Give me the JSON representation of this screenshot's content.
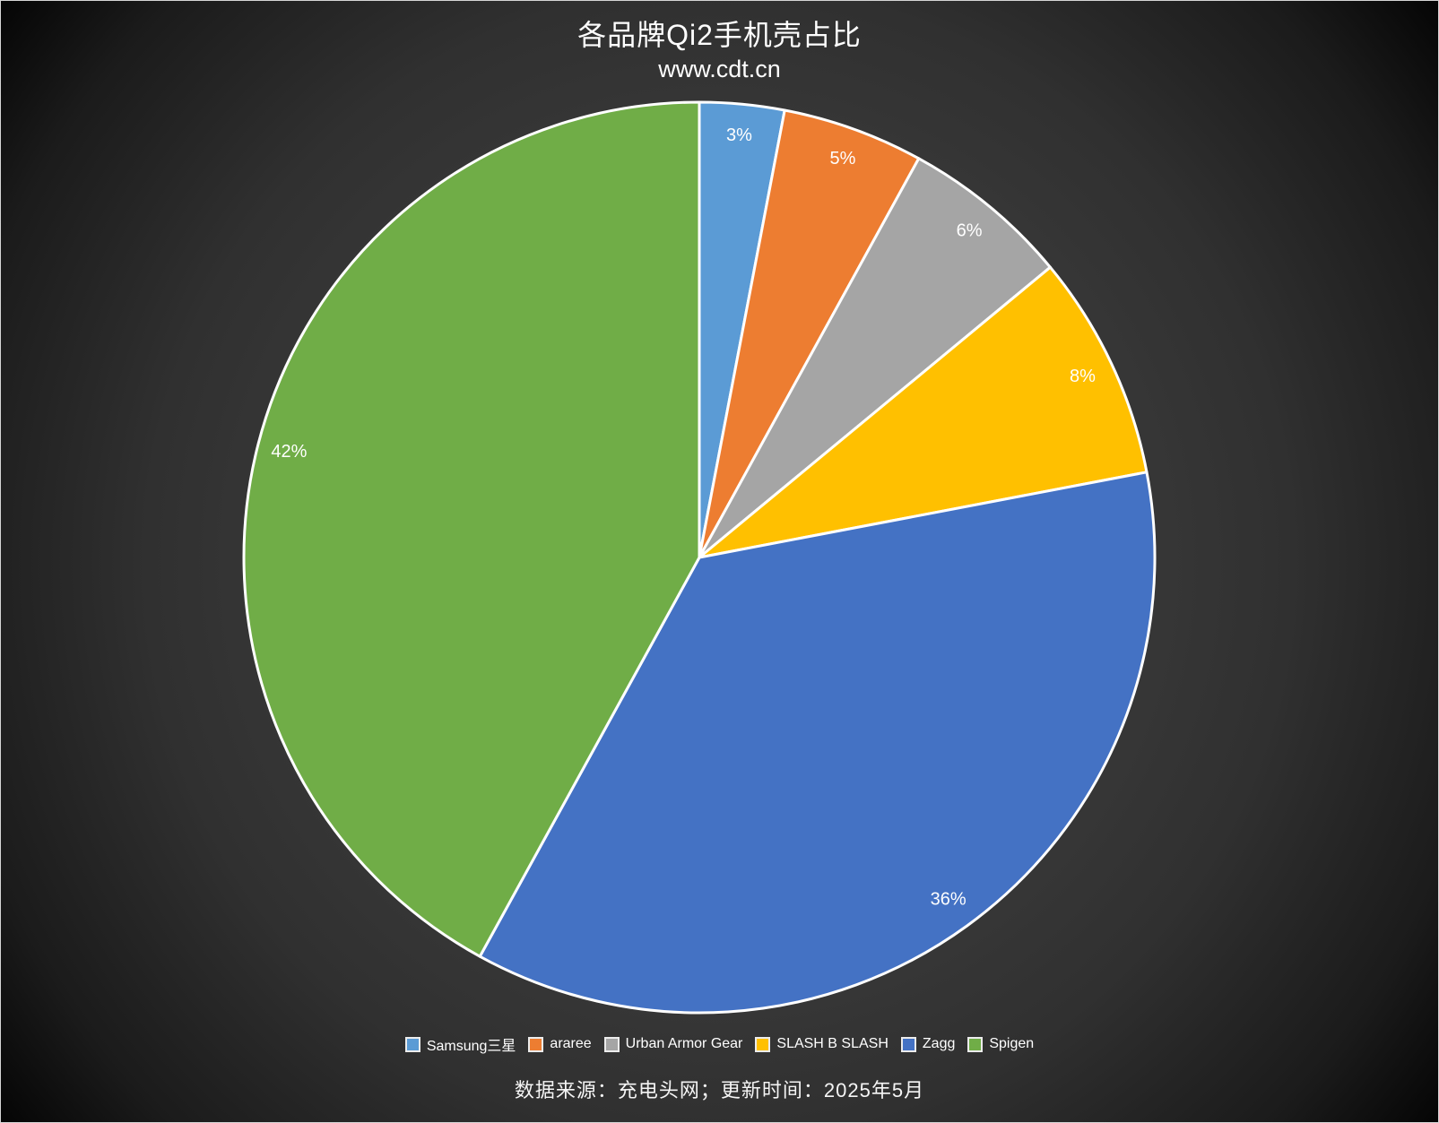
{
  "chart_data": {
    "type": "pie",
    "title": "各品牌Qi2手机壳占比",
    "subtitle": "www.cdt.cn",
    "source_note": "数据来源：充电头网；更新时间：2025年5月",
    "unit": "percent",
    "start_angle_deg": 0,
    "direction": "clockwise",
    "legend_position": "bottom",
    "labels": [
      "Samsung三星",
      "araree",
      "Urban Armor Gear",
      "SLASH B SLASH",
      "Zagg",
      "Spigen"
    ],
    "values": [
      3,
      5,
      6,
      8,
      36,
      42
    ],
    "data_labels": [
      "3%",
      "5%",
      "6%",
      "8%",
      "36%",
      "42%"
    ],
    "colors": [
      "#5B9BD5",
      "#ED7D31",
      "#A5A5A5",
      "#FFC000",
      "#4472C4",
      "#70AD47"
    ],
    "slice_border_color": "#FFFFFF",
    "label_color": "#FFFFFF",
    "background": "dark-radial-gradient"
  }
}
